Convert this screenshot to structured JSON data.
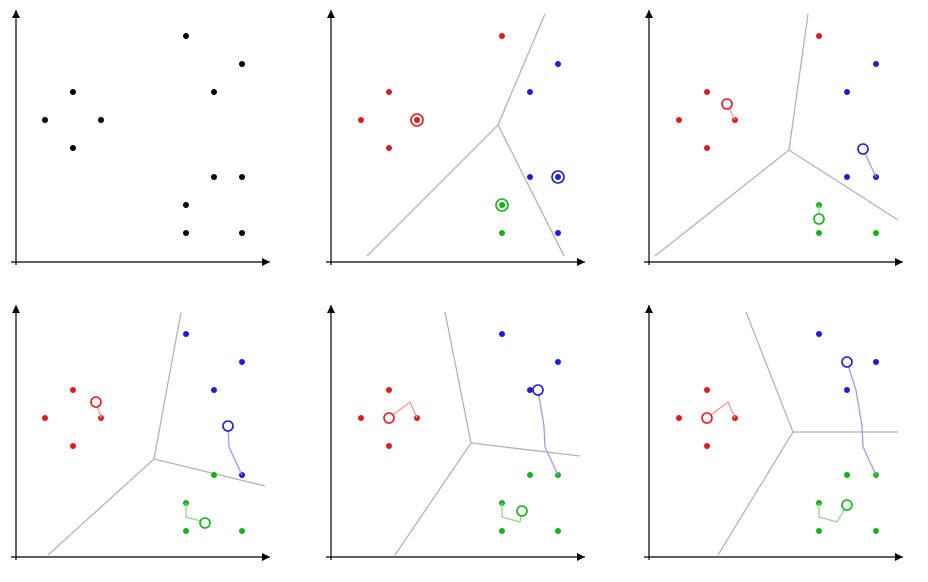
{
  "figure": {
    "panel_count": 6,
    "colors": {
      "axis": "#000000",
      "boundary": "#b3b3b3",
      "unassigned": "#000000",
      "red": "#e01b1b",
      "blue": "#1c1cd9",
      "green": "#14b214",
      "red_path": "#f09a9a",
      "blue_path": "#9a9af0",
      "green_path": "#8fd98f"
    },
    "icons": [
      "axis-arrow-icon"
    ]
  }
}
